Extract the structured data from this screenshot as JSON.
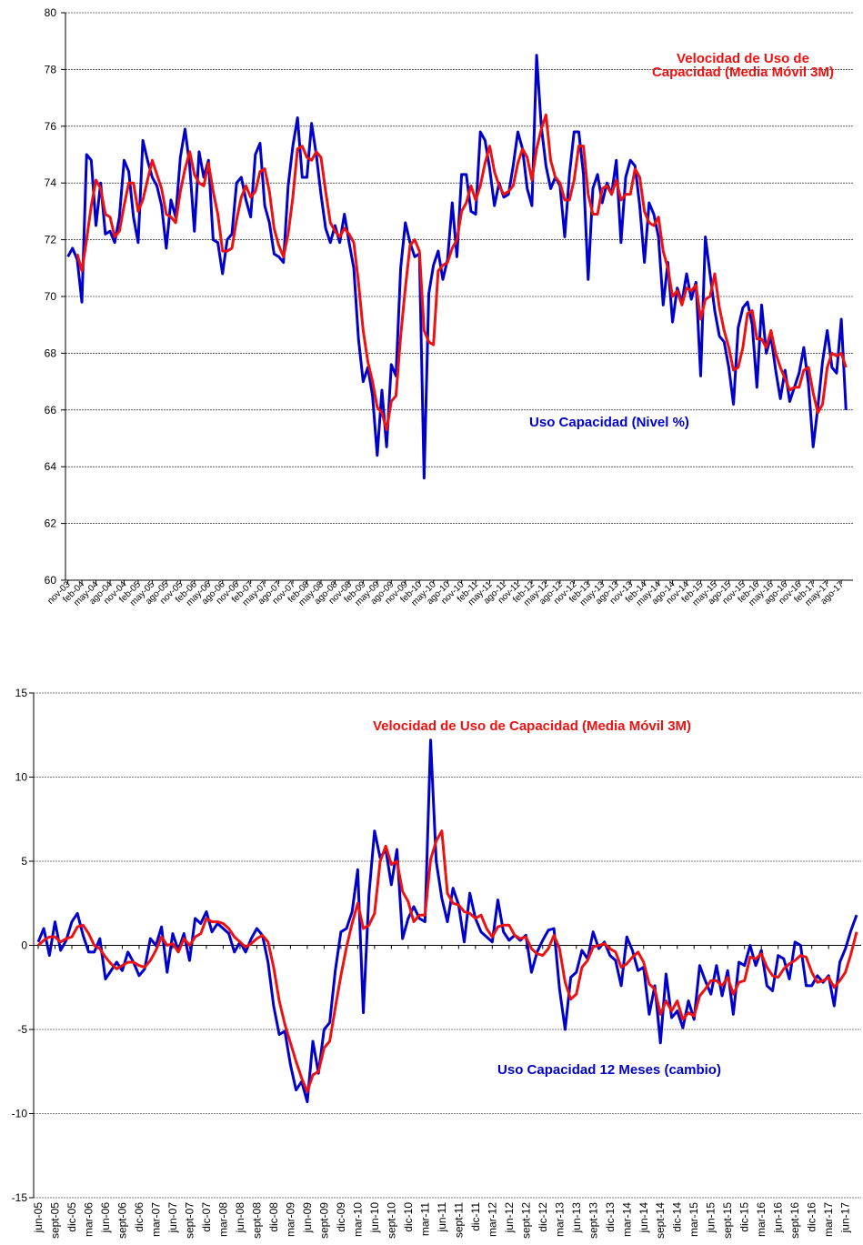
{
  "chart_data": [
    {
      "type": "line",
      "categories": [
        "nov-03",
        null,
        null,
        "feb-04",
        null,
        null,
        "may-04",
        null,
        null,
        "ago-04",
        null,
        null,
        "nov-04",
        null,
        null,
        "feb-05",
        null,
        null,
        "may-05",
        null,
        null,
        "ago-05",
        null,
        null,
        "nov-05",
        null,
        null,
        "feb-06",
        null,
        null,
        "may-06",
        null,
        null,
        "ago-06",
        null,
        null,
        "nov-06",
        null,
        null,
        "feb-07",
        null,
        null,
        "may-07",
        null,
        null,
        "ago-07",
        null,
        null,
        "nov-07",
        null,
        null,
        "feb-08",
        null,
        null,
        "may-08",
        null,
        null,
        "ago-08",
        null,
        null,
        "nov-08",
        null,
        null,
        "feb-09",
        null,
        null,
        "may-09",
        null,
        null,
        "ago-09",
        null,
        null,
        "nov-09",
        null,
        null,
        "feb-10",
        null,
        null,
        "may-10",
        null,
        null,
        "ago-10",
        null,
        null,
        "nov-10",
        null,
        null,
        "feb-11",
        null,
        null,
        "may-11",
        null,
        null,
        "ago-11",
        null,
        null,
        "nov-11",
        null,
        null,
        "feb-12",
        null,
        null,
        "may-12",
        null,
        null,
        "ago-12",
        null,
        null,
        "nov-12",
        null,
        null,
        "feb-13",
        null,
        null,
        "may-13",
        null,
        null,
        "ago-13",
        null,
        null,
        "nov-13",
        null,
        null,
        "feb-14",
        null,
        null,
        "may-14",
        null,
        null,
        "ago-14",
        null,
        null,
        "nov-14",
        null,
        null,
        "feb-15",
        null,
        null,
        "may-15",
        null,
        null,
        "ago-15",
        null,
        null,
        "nov-15",
        null,
        null,
        "feb-16",
        null,
        null,
        "may-16",
        null,
        null,
        "ago-16",
        null,
        null,
        "nov-16",
        null,
        null,
        "feb-17",
        null,
        null,
        "may-17",
        null,
        null,
        "ago-17",
        null
      ],
      "series": [
        {
          "name": "Uso Capacidad (Nivel %)",
          "color": "#0000cc",
          "values": [
            71.4,
            71.7,
            71.3,
            69.8,
            75.0,
            74.8,
            72.5,
            74.0,
            72.2,
            72.3,
            71.9,
            72.8,
            74.8,
            74.4,
            72.8,
            71.9,
            75.5,
            74.8,
            74.2,
            73.9,
            73.2,
            71.7,
            73.4,
            72.8,
            74.9,
            75.9,
            74.6,
            72.3,
            75.1,
            74.2,
            74.8,
            72.0,
            71.9,
            70.8,
            72.0,
            72.2,
            74.0,
            74.2,
            73.4,
            72.8,
            75.0,
            75.4,
            73.2,
            72.6,
            71.5,
            71.4,
            71.2,
            73.9,
            75.3,
            76.3,
            74.2,
            74.2,
            76.1,
            75.0,
            73.6,
            72.4,
            71.9,
            72.5,
            71.9,
            72.9,
            71.9,
            71.0,
            68.5,
            67.0,
            67.5,
            66.5,
            64.4,
            66.7,
            64.7,
            67.6,
            67.2,
            71.0,
            72.6,
            71.9,
            71.4,
            71.5,
            63.6,
            70.1,
            71.1,
            71.6,
            70.6,
            71.3,
            73.3,
            71.4,
            74.3,
            74.3,
            73.0,
            72.9,
            75.8,
            75.5,
            74.5,
            73.2,
            74.0,
            73.5,
            73.6,
            74.6,
            75.8,
            75.2,
            73.8,
            73.2,
            78.5,
            76.0,
            74.6,
            73.8,
            74.2,
            73.9,
            72.1,
            74.3,
            75.8,
            75.8,
            74.3,
            70.6,
            73.8,
            74.3,
            73.3,
            74.0,
            73.6,
            74.8,
            71.9,
            74.2,
            74.8,
            74.6,
            73.2,
            71.2,
            73.3,
            72.9,
            72.1,
            69.7,
            71.2,
            69.1,
            70.3,
            69.8,
            70.8,
            69.9,
            70.5,
            67.2,
            72.1,
            70.8,
            69.5,
            68.6,
            68.4,
            67.5,
            66.2,
            68.9,
            69.6,
            69.8,
            69.0,
            66.8,
            69.7,
            68.0,
            68.6,
            67.4,
            66.4,
            67.4,
            66.3,
            66.8,
            67.3,
            68.2,
            66.9,
            64.7,
            66.1,
            67.7,
            68.8,
            67.5,
            67.3,
            69.2,
            66.0
          ]
        },
        {
          "name": "Velocidad de Uso de Capacidad (Media Móvil 3M)",
          "color": "#ee1111",
          "values": [
            null,
            null,
            71.5,
            70.9,
            72.0,
            73.2,
            74.1,
            73.8,
            72.9,
            72.8,
            72.1,
            72.3,
            73.2,
            74.0,
            74.0,
            73.0,
            73.4,
            74.1,
            74.8,
            74.3,
            73.8,
            72.9,
            72.8,
            72.6,
            73.7,
            74.5,
            75.1,
            74.3,
            74.0,
            73.9,
            74.7,
            73.7,
            72.9,
            71.6,
            71.6,
            71.7,
            72.7,
            73.5,
            73.9,
            73.5,
            73.7,
            74.4,
            74.5,
            73.7,
            72.4,
            71.8,
            71.4,
            72.2,
            73.5,
            75.2,
            75.3,
            74.9,
            74.8,
            75.1,
            74.9,
            73.7,
            72.6,
            72.3,
            72.1,
            72.4,
            72.2,
            71.9,
            70.5,
            68.8,
            67.7,
            67.0,
            66.1,
            65.9,
            65.3,
            66.3,
            66.5,
            68.6,
            70.3,
            71.8,
            72.0,
            71.6,
            68.8,
            68.4,
            68.3,
            70.9,
            71.1,
            71.2,
            71.7,
            72.0,
            73.0,
            73.3,
            73.9,
            73.4,
            73.9,
            74.7,
            75.3,
            74.4,
            73.9,
            73.6,
            73.7,
            73.9,
            74.7,
            75.2,
            74.9,
            74.1,
            75.2,
            75.9,
            76.4,
            74.8,
            74.2,
            74.0,
            73.4,
            73.4,
            74.1,
            75.3,
            75.3,
            73.6,
            72.9,
            72.9,
            73.8,
            73.9,
            73.6,
            74.1,
            73.4,
            73.6,
            73.6,
            74.5,
            74.2,
            73.0,
            72.6,
            72.5,
            72.8,
            71.6,
            71.0,
            70.0,
            70.2,
            69.7,
            70.3,
            70.2,
            70.4,
            69.2,
            69.9,
            70.0,
            70.8,
            69.6,
            68.8,
            68.2,
            67.4,
            67.5,
            68.2,
            69.4,
            69.5,
            68.5,
            68.5,
            68.2,
            68.8,
            68.0,
            67.5,
            67.1,
            66.7,
            66.8,
            66.8,
            67.4,
            67.5,
            66.6,
            65.9,
            66.2,
            67.5,
            68.0,
            67.9,
            68.0,
            67.5
          ]
        }
      ],
      "ylim": [
        60,
        80
      ],
      "yticks": [
        60,
        62,
        64,
        66,
        68,
        70,
        72,
        74,
        76,
        78,
        80
      ],
      "grid": true
    },
    {
      "type": "line",
      "categories": [
        "jun-05",
        null,
        null,
        "sept-05",
        null,
        null,
        "dic-05",
        null,
        null,
        "mar-06",
        null,
        null,
        "jun-06",
        null,
        null,
        "sept-06",
        null,
        null,
        "dic-06",
        null,
        null,
        "mar-07",
        null,
        null,
        "jun-07",
        null,
        null,
        "sept-07",
        null,
        null,
        "dic-07",
        null,
        null,
        "mar-08",
        null,
        null,
        "jun-08",
        null,
        null,
        "sept-08",
        null,
        null,
        "dic-08",
        null,
        null,
        "mar-09",
        null,
        null,
        "jun-09",
        null,
        null,
        "sept-09",
        null,
        null,
        "dic-09",
        null,
        null,
        "mar-10",
        null,
        null,
        "jun-10",
        null,
        null,
        "sept-10",
        null,
        null,
        "dic-10",
        null,
        null,
        "mar-11",
        null,
        null,
        "jun-11",
        null,
        null,
        "sept-11",
        null,
        null,
        "dic-11",
        null,
        null,
        "mar-12",
        null,
        null,
        "jun-12",
        null,
        null,
        "sept-12",
        null,
        null,
        "dic-12",
        null,
        null,
        "mar-13",
        null,
        null,
        "jun-13",
        null,
        null,
        "sept-13",
        null,
        null,
        "dic-13",
        null,
        null,
        "mar-14",
        null,
        null,
        "jun-14",
        null,
        null,
        "sept-14",
        null,
        null,
        "dic-14",
        null,
        null,
        "mar-15",
        null,
        null,
        "jun-15",
        null,
        null,
        "sept-15",
        null,
        null,
        "dic-15",
        null,
        null,
        "mar-16",
        null,
        null,
        "jun-16",
        null,
        null,
        "sept-16",
        null,
        null,
        "dic-16",
        null,
        null,
        "mar-17",
        null,
        null,
        "jun-17",
        null,
        null
      ],
      "series": [
        {
          "name": "Uso Capacidad 12 Meses (cambio)",
          "color": "#0000cc",
          "values": [
            0.2,
            1.0,
            -0.6,
            1.4,
            -0.3,
            0.3,
            1.4,
            1.9,
            0.6,
            -0.4,
            -0.4,
            0.4,
            -2.0,
            -1.5,
            -1.0,
            -1.5,
            -0.4,
            -1.0,
            -1.8,
            -1.4,
            0.4,
            0.0,
            1.1,
            -1.6,
            0.7,
            -0.3,
            0.7,
            -0.9,
            1.6,
            1.3,
            2.0,
            0.8,
            1.3,
            1.0,
            0.7,
            -0.4,
            0.2,
            -0.4,
            0.4,
            1.0,
            0.6,
            -1.0,
            -3.6,
            -5.3,
            -5.1,
            -7.1,
            -8.6,
            -8.1,
            -9.3,
            -5.7,
            -7.6,
            -5.0,
            -4.6,
            -1.5,
            0.8,
            1.0,
            2.0,
            4.5,
            -4.0,
            3.0,
            6.8,
            5.2,
            5.7,
            3.6,
            5.7,
            0.4,
            1.6,
            2.3,
            1.6,
            1.4,
            12.2,
            5.0,
            2.8,
            1.4,
            3.4,
            2.4,
            0.2,
            3.1,
            1.6,
            0.8,
            0.5,
            0.2,
            2.7,
            0.8,
            0.3,
            0.6,
            0.3,
            0.6,
            -1.6,
            -0.4,
            0.3,
            0.9,
            1.0,
            -2.6,
            -5.0,
            -1.9,
            -1.6,
            -0.3,
            -0.8,
            0.8,
            -0.2,
            0.2,
            -0.6,
            -0.9,
            -2.4,
            0.5,
            -0.3,
            -1.5,
            -1.3,
            -4.1,
            -2.4,
            -5.8,
            -1.7,
            -4.3,
            -3.9,
            -4.9,
            -3.3,
            -4.4,
            -1.2,
            -2.1,
            -2.9,
            -1.2,
            -3.0,
            -1.5,
            -4.1,
            -1.0,
            -1.2,
            0.0,
            -1.2,
            -0.3,
            -2.4,
            -2.7,
            -0.6,
            -0.8,
            -2.0,
            0.2,
            0.0,
            -2.4,
            -2.4,
            -1.8,
            -2.2,
            -1.8,
            -3.6,
            -1.0,
            -0.2,
            0.9,
            1.8
          ]
        },
        {
          "name": "Velocidad de Uso de Capacidad (Media Móvil 3M)",
          "color": "#ee1111",
          "values": [
            0.0,
            0.3,
            0.5,
            0.5,
            0.2,
            0.4,
            0.5,
            1.1,
            1.2,
            0.7,
            0.0,
            -0.2,
            -0.7,
            -1.1,
            -1.4,
            -1.2,
            -1.0,
            -1.0,
            -1.2,
            -1.3,
            -0.9,
            -0.3,
            0.5,
            0.0,
            0.1,
            -0.4,
            0.4,
            0.0,
            0.5,
            0.7,
            1.6,
            1.4,
            1.4,
            1.3,
            1.0,
            0.5,
            0.2,
            -0.1,
            0.1,
            0.4,
            0.6,
            0.2,
            -1.3,
            -3.3,
            -4.7,
            -5.8,
            -6.9,
            -7.9,
            -8.7,
            -7.7,
            -7.5,
            -6.1,
            -5.7,
            -3.7,
            -1.8,
            -0.1,
            1.3,
            2.5,
            1.0,
            1.2,
            1.9,
            5.0,
            5.9,
            4.8,
            5.0,
            3.2,
            2.6,
            1.4,
            1.8,
            1.8,
            5.1,
            6.2,
            6.8,
            3.1,
            2.5,
            2.4,
            2.0,
            1.9,
            1.6,
            1.8,
            1.0,
            0.5,
            1.1,
            1.2,
            1.2,
            0.6,
            0.4,
            0.5,
            -0.2,
            -0.5,
            -0.6,
            -0.2,
            0.6,
            -0.2,
            -2.2,
            -3.2,
            -2.9,
            -1.3,
            -0.9,
            -0.1,
            0.0,
            0.1,
            -0.2,
            -0.4,
            -1.3,
            -1.1,
            -0.7,
            -0.4,
            -1.0,
            -2.3,
            -2.6,
            -4.1,
            -3.3,
            -3.9,
            -3.3,
            -4.4,
            -4.0,
            -4.2,
            -3.0,
            -2.6,
            -2.1,
            -2.1,
            -2.4,
            -1.9,
            -2.9,
            -2.2,
            -2.1,
            -0.7,
            -0.8,
            -0.5,
            -1.3,
            -1.8,
            -1.9,
            -1.4,
            -1.1,
            -0.9,
            -0.6,
            -0.7,
            -1.6,
            -2.2,
            -2.1,
            -1.9,
            -2.5,
            -2.1,
            -1.6,
            -0.5,
            0.8
          ]
        }
      ],
      "ylim": [
        -15,
        15
      ],
      "yticks": [
        -15,
        -10,
        -5,
        0,
        5,
        10,
        15
      ],
      "grid": true
    }
  ]
}
